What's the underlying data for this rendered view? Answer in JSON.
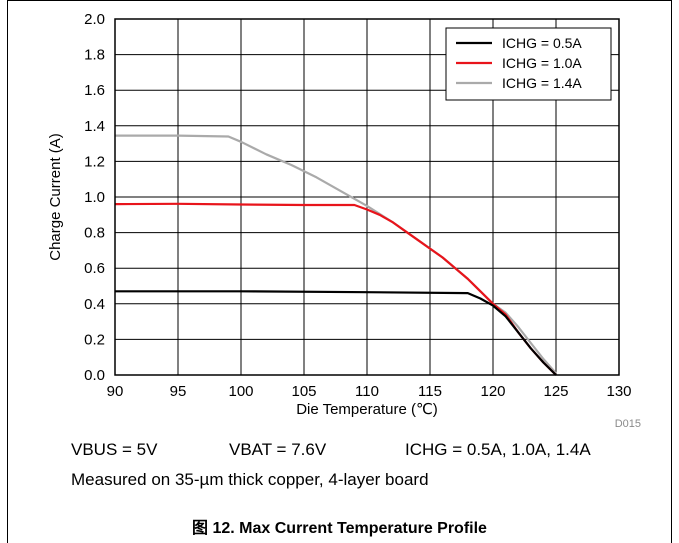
{
  "chart_data": {
    "type": "line",
    "xlabel": "Die Temperature (℃)",
    "ylabel": "Charge Current (A)",
    "xlim": [
      90,
      130
    ],
    "ylim": [
      0,
      2.0
    ],
    "x_ticks": [
      90,
      95,
      100,
      105,
      110,
      115,
      120,
      125,
      130
    ],
    "y_ticks": [
      0.0,
      0.2,
      0.4,
      0.6,
      0.8,
      1.0,
      1.2,
      1.4,
      1.6,
      1.8,
      2.0
    ],
    "grid": true,
    "legend_position": "top-right",
    "figure_id": "D015",
    "series": [
      {
        "name": "ICHG = 0.5A",
        "color": "#000000",
        "x": [
          90,
          100,
          110,
          118,
          119,
          120,
          121,
          122,
          123,
          124,
          125
        ],
        "y": [
          0.47,
          0.47,
          0.465,
          0.46,
          0.43,
          0.39,
          0.33,
          0.24,
          0.15,
          0.07,
          0.0
        ]
      },
      {
        "name": "ICHG = 1.0A",
        "color": "#e8141b",
        "x": [
          90,
          95,
          100,
          105,
          109,
          110,
          111,
          112,
          113,
          114,
          115,
          116,
          117,
          118,
          119,
          120,
          121,
          122,
          123,
          124,
          125
        ],
        "y": [
          0.96,
          0.962,
          0.958,
          0.955,
          0.955,
          0.93,
          0.9,
          0.86,
          0.81,
          0.76,
          0.71,
          0.66,
          0.6,
          0.54,
          0.47,
          0.4,
          0.34,
          0.24,
          0.15,
          0.07,
          0.0
        ]
      },
      {
        "name": "ICHG = 1.4A",
        "color": "#aaaaaa",
        "x": [
          90,
          95,
          99,
          100,
          102,
          104,
          106,
          108,
          110,
          112,
          114,
          116,
          118,
          120,
          121,
          122,
          123,
          124,
          125
        ],
        "y": [
          1.345,
          1.345,
          1.34,
          1.31,
          1.24,
          1.18,
          1.11,
          1.03,
          0.95,
          0.86,
          0.76,
          0.66,
          0.54,
          0.4,
          0.35,
          0.27,
          0.18,
          0.09,
          0.01
        ]
      }
    ]
  },
  "conditions": {
    "vbus": "VBUS = 5V",
    "vbat": "VBAT = 7.6V",
    "ichg": "ICHG = 0.5A, 1.0A, 1.4A",
    "measured": "Measured on 35-µm thick copper, 4-layer board"
  },
  "caption": "图 12. Max Current Temperature Profile"
}
